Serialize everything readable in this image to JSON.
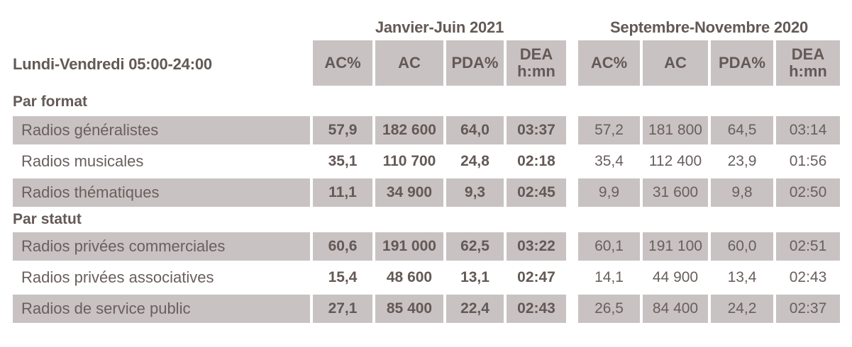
{
  "colors": {
    "cell_background": "#c9c2c2",
    "text": "#695f5d",
    "page_background": "#ffffff"
  },
  "chart_data": {
    "type": "table",
    "title": "Lundi-Vendredi 05:00-24:00",
    "column_groups": [
      {
        "title": "Janvier-Juin 2021",
        "columns": [
          "AC%",
          "AC",
          "PDA%",
          "DEA\nh:mn"
        ]
      },
      {
        "title": "Septembre-Novembre 2020",
        "columns": [
          "AC%",
          "AC",
          "PDA%",
          "DEA\nh:mn"
        ]
      }
    ],
    "sections": [
      {
        "heading": "Par format",
        "rows": [
          {
            "label": "Radios généralistes",
            "values": [
              "57,9",
              "182 600",
              "64,0",
              "03:37",
              "57,2",
              "181 800",
              "64,5",
              "03:14"
            ]
          },
          {
            "label": "Radios musicales",
            "values": [
              "35,1",
              "110 700",
              "24,8",
              "02:18",
              "35,4",
              "112 400",
              "23,9",
              "01:56"
            ]
          },
          {
            "label": "Radios thématiques",
            "values": [
              "11,1",
              "34 900",
              "9,3",
              "02:45",
              "9,9",
              "31 600",
              "9,8",
              "02:50"
            ]
          }
        ]
      },
      {
        "heading": "Par statut",
        "rows": [
          {
            "label": "Radios privées commerciales",
            "values": [
              "60,6",
              "191 000",
              "62,5",
              "03:22",
              "60,1",
              "191 100",
              "60,0",
              "02:51"
            ]
          },
          {
            "label": "Radios privées associatives",
            "values": [
              "15,4",
              "48 600",
              "13,1",
              "02:47",
              "14,1",
              "44 900",
              "13,4",
              "02:43"
            ]
          },
          {
            "label": "Radios de service public",
            "values": [
              "27,1",
              "85 400",
              "22,4",
              "02:43",
              "26,5",
              "84 400",
              "24,2",
              "02:37"
            ]
          }
        ]
      }
    ]
  }
}
